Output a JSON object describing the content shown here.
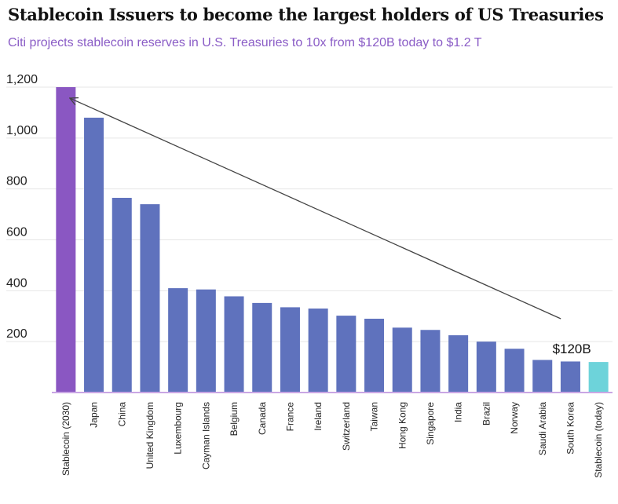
{
  "chart_data": {
    "type": "bar",
    "title": "Stablecoin Issuers to become the largest holders of US Treasuries",
    "subtitle": "Citi projects stablecoin reserves in U.S. Treasuries to 10x from $120B today to $1.2 T",
    "categories": [
      "Stablecoin (2030)",
      "Japan",
      "China",
      "United Kingdom",
      "Luxembourg",
      "Cayman Islands",
      "Belgium",
      "Canada",
      "France",
      "Ireland",
      "Switzerland",
      "Taiwan",
      "Hong Kong",
      "Singapore",
      "India",
      "Brazil",
      "Norway",
      "Saudi Arabia",
      "South Korea",
      "Stablecoin (today)"
    ],
    "values": [
      1200,
      1080,
      765,
      740,
      410,
      405,
      378,
      352,
      335,
      330,
      302,
      290,
      255,
      246,
      225,
      200,
      172,
      128,
      122,
      120
    ],
    "bar_colors": [
      "#8a57c2",
      "#5f72bd",
      "#5f72bd",
      "#5f72bd",
      "#5f72bd",
      "#5f72bd",
      "#5f72bd",
      "#5f72bd",
      "#5f72bd",
      "#5f72bd",
      "#5f72bd",
      "#5f72bd",
      "#5f72bd",
      "#5f72bd",
      "#5f72bd",
      "#5f72bd",
      "#5f72bd",
      "#5f72bd",
      "#5f72bd",
      "#6dd3da"
    ],
    "yticks": [
      200,
      400,
      600,
      800,
      1000,
      1200
    ],
    "ytick_labels": [
      "200",
      "400",
      "600",
      "800",
      "1,000",
      "1,200"
    ],
    "ylim": [
      0,
      1200
    ],
    "grid": true,
    "legend": "none",
    "annotation": {
      "text": "$120B",
      "from_category": "Stablecoin (today)",
      "to_category": "Stablecoin (2030)"
    },
    "axis_color": "#c9a6e4",
    "grid_color": "#e6e6e6"
  }
}
